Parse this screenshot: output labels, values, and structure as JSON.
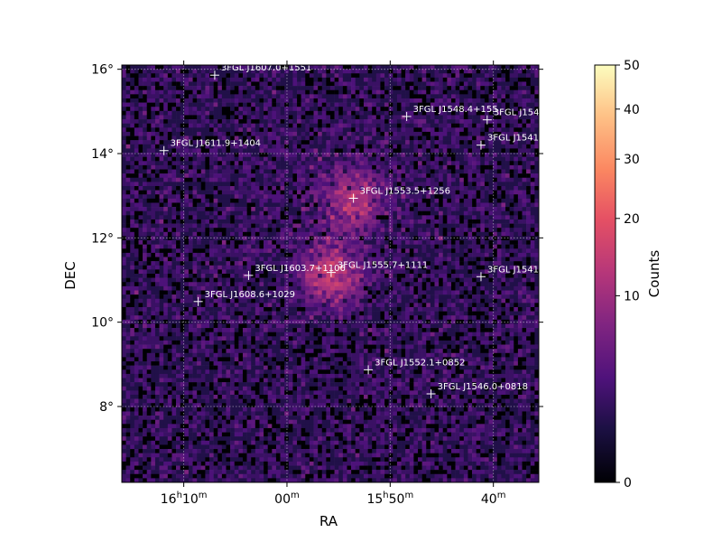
{
  "chart_data": {
    "type": "heatmap",
    "title": "",
    "xlabel": "RA",
    "ylabel": "DEC",
    "colorbar": {
      "label": "Counts",
      "ticks": [
        "0",
        "10",
        "20",
        "30",
        "40",
        "50"
      ],
      "range": [
        0,
        50
      ],
      "colormap": "magma"
    },
    "x_ticks": [
      {
        "ra": 242.5,
        "label": "16",
        "unit": "h",
        "min": "10",
        "munit": "m"
      },
      {
        "ra": 240.0,
        "label": "",
        "unit": "",
        "min": "00",
        "munit": "m"
      },
      {
        "ra": 237.5,
        "label": "15",
        "unit": "h",
        "min": "50",
        "munit": "m"
      },
      {
        "ra": 235.0,
        "label": "",
        "unit": "",
        "min": "40",
        "munit": "m"
      }
    ],
    "y_ticks": [
      {
        "dec": 8,
        "label": "8°"
      },
      {
        "dec": 10,
        "label": "10°"
      },
      {
        "dec": 12,
        "label": "12°"
      },
      {
        "dec": 14,
        "label": "14°"
      },
      {
        "dec": 16,
        "label": "16°"
      }
    ],
    "ra_range": [
      244.0,
      233.9
    ],
    "dec_range": [
      6.2,
      16.1
    ],
    "grid": true,
    "emission_peaks": [
      {
        "ra": 238.4,
        "dec": 12.9,
        "strength": 10
      },
      {
        "ra": 238.9,
        "dec": 11.1,
        "strength": 12
      }
    ],
    "sources": [
      {
        "name": "3FGL J1607.0+1551",
        "ra": 241.75,
        "dec": 15.86
      },
      {
        "name": "3FGL J1548.4+155",
        "ra": 237.1,
        "dec": 14.88
      },
      {
        "name": "3FGL J154",
        "ra": 235.15,
        "dec": 14.8
      },
      {
        "name": "3FGL J1611.9+1404",
        "ra": 242.98,
        "dec": 14.07
      },
      {
        "name": "3FGL J1541.",
        "ra": 235.3,
        "dec": 14.2
      },
      {
        "name": "3FGL J1553.5+1256",
        "ra": 238.39,
        "dec": 12.94
      },
      {
        "name": "3FGL J1603.7+1106",
        "ra": 240.93,
        "dec": 11.11
      },
      {
        "name": "3FGL J1555.7+1111",
        "ra": 238.93,
        "dec": 11.18
      },
      {
        "name": "3FGL J1541.",
        "ra": 235.3,
        "dec": 11.08
      },
      {
        "name": "3FGL J1608.6+1029",
        "ra": 242.15,
        "dec": 10.49
      },
      {
        "name": "3FGL J1552.1+0852",
        "ra": 238.03,
        "dec": 8.87
      },
      {
        "name": "3FGL J1546.0+0818",
        "ra": 236.51,
        "dec": 8.3
      }
    ]
  }
}
